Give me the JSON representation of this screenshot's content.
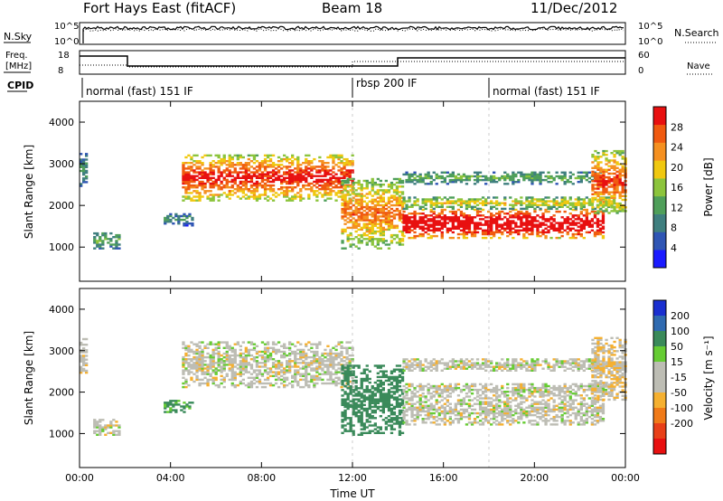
{
  "header": {
    "title": "Fort Hays East (fitACF)",
    "beam": "Beam 18",
    "date": "11/Dec/2012"
  },
  "summary_panels": {
    "nsky_label": "N.Sky",
    "nsky_ticks": [
      "10^5",
      "10^0"
    ],
    "nsearch_label": "N.Search",
    "nsearch_ticks": [
      "10^5",
      "10^0"
    ],
    "freq_label_1": "Freq.",
    "freq_label_2": "[MHz]",
    "freq_ticks": [
      "18",
      "8"
    ],
    "nave_label": "Nave",
    "nave_ticks": [
      "60",
      "0"
    ],
    "cpid_label": "CPID",
    "cpid_entries": [
      {
        "label": "normal (fast) 151 IF",
        "start_hour": 0
      },
      {
        "label": "rbsp 200 IF",
        "start_hour": 12
      },
      {
        "label": "normal (fast) 151 IF",
        "start_hour": 18
      }
    ]
  },
  "colors": {
    "power_scale": [
      "#1a1aff",
      "#2f55b4",
      "#3f7f7f",
      "#4f9f5a",
      "#8cc43c",
      "#f0c810",
      "#f59020",
      "#f05a10",
      "#e81010"
    ],
    "velocity_scale": [
      "#1a2fd0",
      "#2f6ab0",
      "#3a8a5a",
      "#66cc33",
      "#bdbdb4",
      "#bdbdb4",
      "#f5b030",
      "#f07a18",
      "#e84018",
      "#e81010"
    ]
  },
  "chart_data": [
    {
      "type": "heatmap",
      "name": "Power",
      "xlabel": "",
      "ylabel": "Slant Range [km]",
      "xlim": [
        0,
        24
      ],
      "ylim": [
        180,
        4500
      ],
      "yticks": [
        1000,
        2000,
        3000,
        4000
      ],
      "ytick_labels": [
        "1000",
        "2000",
        "3000",
        "4000"
      ],
      "colorbar_label": "Power [dB]",
      "colorbar_ticks": [
        "4",
        "8",
        "12",
        "16",
        "20",
        "24",
        "28"
      ],
      "colorbar_range": [
        0,
        32
      ],
      "features": [
        {
          "t": [
            0.0,
            0.3
          ],
          "r": [
            2450,
            3300
          ],
          "level": 8
        },
        {
          "t": [
            0.6,
            1.7
          ],
          "r": [
            950,
            1350
          ],
          "level": 10
        },
        {
          "t": [
            3.7,
            5.0
          ],
          "r": [
            1500,
            1800
          ],
          "level": 8
        },
        {
          "t": [
            4.5,
            12.0
          ],
          "r": [
            2100,
            3200
          ],
          "level": 22
        },
        {
          "t": [
            11.5,
            14.2
          ],
          "r": [
            950,
            2650
          ],
          "level": 18
        },
        {
          "t": [
            14.2,
            23.0
          ],
          "r": [
            1200,
            1900
          ],
          "level": 28
        },
        {
          "t": [
            14.2,
            23.5
          ],
          "r": [
            1900,
            2200
          ],
          "level": 14
        },
        {
          "t": [
            14.2,
            23.0
          ],
          "r": [
            2500,
            2800
          ],
          "level": 10
        },
        {
          "t": [
            22.5,
            24.0
          ],
          "r": [
            1800,
            3300
          ],
          "level": 20
        }
      ]
    },
    {
      "type": "heatmap",
      "name": "Velocity",
      "xlabel": "Time UT",
      "ylabel": "Slant Range [km]",
      "xlim": [
        0,
        24
      ],
      "ylim": [
        180,
        4500
      ],
      "yticks": [
        1000,
        2000,
        3000,
        4000
      ],
      "ytick_labels": [
        "1000",
        "2000",
        "3000",
        "4000"
      ],
      "xticks": [
        0,
        4,
        8,
        12,
        16,
        20,
        24
      ],
      "xtick_labels": [
        "00:00",
        "04:00",
        "08:00",
        "12:00",
        "16:00",
        "20:00",
        "00:00"
      ],
      "colorbar_label": "Velocity [m s⁻¹]",
      "colorbar_ticks": [
        "200",
        "100",
        "50",
        "15",
        "-15",
        "-50",
        "-100",
        "-200"
      ],
      "features": [
        {
          "t": [
            0.0,
            0.3
          ],
          "r": [
            2450,
            3300
          ],
          "vel": 0
        },
        {
          "t": [
            0.6,
            1.7
          ],
          "r": [
            950,
            1350
          ],
          "vel": 0
        },
        {
          "t": [
            3.7,
            5.0
          ],
          "r": [
            1500,
            1800
          ],
          "vel": 60
        },
        {
          "t": [
            4.5,
            12.0
          ],
          "r": [
            2100,
            3200
          ],
          "vel": 0
        },
        {
          "t": [
            11.5,
            14.2
          ],
          "r": [
            950,
            2650
          ],
          "vel": 70
        },
        {
          "t": [
            14.2,
            23.0
          ],
          "r": [
            1200,
            1900
          ],
          "vel": 0
        },
        {
          "t": [
            14.2,
            23.5
          ],
          "r": [
            1900,
            2200
          ],
          "vel": 0
        },
        {
          "t": [
            14.2,
            23.0
          ],
          "r": [
            2500,
            2800
          ],
          "vel": 0
        },
        {
          "t": [
            22.5,
            24.0
          ],
          "r": [
            1800,
            3300
          ],
          "vel": -10
        }
      ]
    }
  ]
}
